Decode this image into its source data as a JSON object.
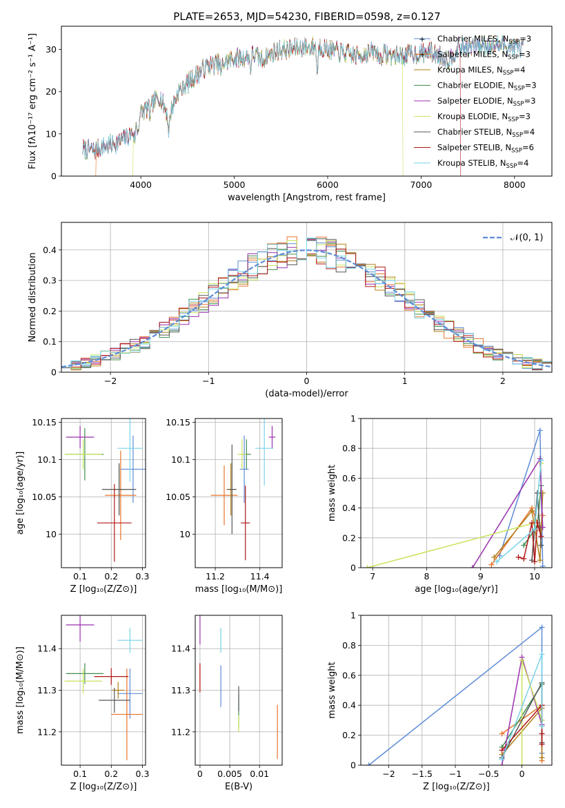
{
  "figure": {
    "title": "PLATE=2653, MJD=54230, FIBERID=0598, z=0.127"
  },
  "series": [
    {
      "name": "Chabrier MILES",
      "nssp": "3",
      "color": "#5b8bd6",
      "marker": "+"
    },
    {
      "name": "Salpeter MILES",
      "nssp": "3",
      "color": "#e8732a",
      "marker": "+"
    },
    {
      "name": "Kroupa MILES",
      "nssp": "4",
      "color": "#b07d16",
      "marker": "+"
    },
    {
      "name": "Chabrier ELODIE",
      "nssp": "3",
      "color": "#3f8c4f",
      "marker": "+"
    },
    {
      "name": "Salpeter ELODIE",
      "nssp": "3",
      "color": "#9b2fae",
      "marker": "+"
    },
    {
      "name": "Kroupa ELODIE",
      "nssp": "3",
      "color": "#c7e35a",
      "marker": "+"
    },
    {
      "name": "Chabrier STELIB",
      "nssp": "4",
      "color": "#555555",
      "marker": "+"
    },
    {
      "name": "Salpeter STELIB",
      "nssp": "6",
      "color": "#b01515",
      "marker": "+"
    },
    {
      "name": "Kroupa STELIB",
      "nssp": "4",
      "color": "#77d3e8",
      "marker": "+"
    }
  ],
  "chart_data": [
    {
      "id": "spectrum",
      "type": "line",
      "xlabel": "wavelength [Angstrom, rest frame]",
      "ylabel": "Flux [fλ10⁻¹⁷ erg cm⁻² s⁻¹ A⁻¹]",
      "xlim": [
        3150,
        8400
      ],
      "ylim": [
        0,
        35.5
      ],
      "xticks": [
        4000,
        5000,
        6000,
        7000,
        8000
      ],
      "yticks": [
        0,
        10,
        20,
        30
      ],
      "grid": false,
      "legend": "top-right",
      "continuum": {
        "x": [
          3380,
          3500,
          3600,
          3700,
          3800,
          3900,
          4000,
          4100,
          4200,
          4300,
          4400,
          4500,
          4600,
          4700,
          4800,
          4900,
          5000,
          5100,
          5200,
          5300,
          5400,
          5500,
          5600,
          5700,
          5800,
          5900,
          6000,
          6100,
          6200,
          6300,
          6400,
          6500,
          6600,
          6700,
          6800,
          6900,
          7000,
          7100,
          7200,
          7300,
          7400,
          7500,
          7600,
          7700,
          7800,
          7900,
          8000,
          8100
        ],
        "y": [
          6.5,
          6,
          7,
          7.5,
          8.5,
          10,
          15,
          16.5,
          19,
          14,
          20,
          22,
          24,
          26,
          26.5,
          27,
          28,
          28,
          29,
          27.5,
          29,
          30,
          30,
          30.5,
          30.5,
          31,
          30,
          29.5,
          29,
          28.5,
          29,
          29.5,
          29,
          28.5,
          28.5,
          29,
          29,
          29.5,
          28.5,
          27.5,
          30.5,
          30.5,
          31,
          31,
          31,
          31,
          30.5,
          30.5
        ]
      },
      "drops": [
        {
          "series": 1,
          "edge": "left",
          "x": 3520
        },
        {
          "series": 5,
          "edge": "left",
          "x": 3920
        },
        {
          "series": 5,
          "edge": "right",
          "x": 6800
        },
        {
          "series": 7,
          "edge": "right",
          "x": 7420
        }
      ]
    },
    {
      "id": "residuals",
      "type": "area",
      "xlabel": "(data-model)/error",
      "ylabel": "Normed distribution",
      "xlim": [
        -2.5,
        2.5
      ],
      "ylim": [
        0,
        0.49
      ],
      "xticks": [
        -2,
        -1,
        0,
        1,
        2
      ],
      "yticks": [
        0.0,
        0.1,
        0.2,
        0.3,
        0.4
      ],
      "grid": true,
      "legend": "top-right",
      "reference_label": "𝒩(0, 1)",
      "reference_color": "#5b8bd6",
      "bin_width": 0.1
    },
    {
      "id": "age-vs-Z",
      "type": "scatter",
      "xlabel": "Z [log₁₀(Z/Z⊙)]",
      "ylabel": "age  [log₁₀(age/yr)]",
      "xlim": [
        0.04,
        0.31
      ],
      "ylim": [
        9.955,
        10.155
      ],
      "xticks": [
        0.1,
        0.2,
        0.3
      ],
      "yticks": [
        10.0,
        10.05,
        10.1,
        10.15
      ],
      "grid": true,
      "points": [
        {
          "series": 0,
          "x": 0.27,
          "y": 10.087,
          "xerr": 0.04,
          "yerr": 0.045
        },
        {
          "series": 1,
          "x": 0.23,
          "y": 10.052,
          "xerr": 0.05,
          "yerr": 0.06
        },
        {
          "series": 2,
          "x": 0.225,
          "y": 10.06,
          "xerr": 0.025,
          "yerr": 0.03
        },
        {
          "series": 3,
          "x": 0.115,
          "y": 10.107,
          "xerr": 0.06,
          "yerr": 0.035
        },
        {
          "series": 4,
          "x": 0.1,
          "y": 10.13,
          "xerr": 0.045,
          "yerr": 0.015
        },
        {
          "series": 5,
          "x": 0.11,
          "y": 10.107,
          "xerr": 0.06,
          "yerr": 0.02
        },
        {
          "series": 6,
          "x": 0.225,
          "y": 10.06,
          "xerr": 0.055,
          "yerr": 0.035
        },
        {
          "series": 7,
          "x": 0.21,
          "y": 10.015,
          "xerr": 0.055,
          "yerr": 0.052
        },
        {
          "series": 8,
          "x": 0.26,
          "y": 10.115,
          "xerr": 0.04,
          "yerr": 0.045
        }
      ]
    },
    {
      "id": "age-vs-mass",
      "type": "scatter",
      "xlabel": "mass [log₁₀(M/M⊙)]",
      "ylabel": "",
      "xlim": [
        11.11,
        11.5
      ],
      "ylim": [
        9.955,
        10.155
      ],
      "xticks": [
        11.2,
        11.4
      ],
      "yticks": [
        10.0,
        10.05,
        10.1,
        10.15
      ],
      "grid": true,
      "points": [
        {
          "series": 0,
          "x": 11.33,
          "y": 10.087,
          "xerr": 0.02,
          "yerr": 0.045
        },
        {
          "series": 1,
          "x": 11.24,
          "y": 10.052,
          "xerr": 0.06,
          "yerr": 0.04
        },
        {
          "series": 2,
          "x": 11.27,
          "y": 10.06,
          "xerr": 0.02,
          "yerr": 0.035
        },
        {
          "series": 3,
          "x": 11.34,
          "y": 10.107,
          "xerr": 0.02,
          "yerr": 0.02
        },
        {
          "series": 4,
          "x": 11.455,
          "y": 10.13,
          "xerr": 0.015,
          "yerr": 0.015
        },
        {
          "series": 5,
          "x": 11.32,
          "y": 10.107,
          "xerr": 0.02,
          "yerr": 0.02
        },
        {
          "series": 6,
          "x": 11.275,
          "y": 10.06,
          "xerr": 0.02,
          "yerr": 0.06
        },
        {
          "series": 7,
          "x": 11.335,
          "y": 10.015,
          "xerr": 0.02,
          "yerr": 0.05
        },
        {
          "series": 8,
          "x": 11.42,
          "y": 10.115,
          "xerr": 0.04,
          "yerr": 0.05
        }
      ]
    },
    {
      "id": "weight-vs-age",
      "type": "line",
      "xlabel": "age  [log₁₀(age/yr)]",
      "ylabel": "mass weight",
      "xlim": [
        6.78,
        10.32
      ],
      "ylim": [
        0,
        1.0
      ],
      "xticks": [
        7,
        8,
        9,
        10
      ],
      "yticks": [
        0.0,
        0.2,
        0.4,
        0.6,
        0.8,
        1.0
      ],
      "grid": true,
      "lines": [
        {
          "series": 0,
          "x": [
            9.35,
            10.1,
            10.15
          ],
          "y": [
            0.08,
            0.92,
            0.01
          ]
        },
        {
          "series": 1,
          "x": [
            9.2,
            9.95,
            10.1,
            10.15
          ],
          "y": [
            0.02,
            0.4,
            0.25,
            0.35
          ]
        },
        {
          "series": 2,
          "x": [
            9.25,
            9.95,
            10.1,
            10.15
          ],
          "y": [
            0.07,
            0.38,
            0.05,
            0.5
          ]
        },
        {
          "series": 3,
          "x": [
            9.8,
            10.05,
            10.12
          ],
          "y": [
            0.15,
            0.28,
            0.55
          ]
        },
        {
          "series": 4,
          "x": [
            8.85,
            10.1,
            10.15
          ],
          "y": [
            0.0,
            0.73,
            0.27
          ]
        },
        {
          "series": 5,
          "x": [
            6.9,
            10.0,
            10.12
          ],
          "y": [
            0.0,
            0.3,
            0.7
          ]
        },
        {
          "series": 6,
          "x": [
            9.95,
            10.05,
            10.12
          ],
          "y": [
            0.05,
            0.5,
            0.15
          ]
        },
        {
          "series": 7,
          "x": [
            9.7,
            9.8,
            9.95,
            10.0,
            10.05,
            10.12
          ],
          "y": [
            0.07,
            0.06,
            0.3,
            0.04,
            0.3,
            0.21
          ]
        },
        {
          "series": 8,
          "x": [
            9.3,
            10.0,
            10.12
          ],
          "y": [
            0.04,
            0.26,
            0.72
          ]
        }
      ]
    },
    {
      "id": "mass-vs-Z",
      "type": "scatter",
      "xlabel": "Z [log₁₀(Z/Z⊙)]",
      "ylabel": "mass [log₁₀(M/M⊙)]",
      "xlim": [
        0.04,
        0.31
      ],
      "ylim": [
        11.12,
        11.48
      ],
      "xticks": [
        0.1,
        0.2,
        0.3
      ],
      "yticks": [
        11.2,
        11.3,
        11.4
      ],
      "grid": true,
      "points": [
        {
          "series": 0,
          "x": 0.26,
          "y": 11.292,
          "xerr": 0.04,
          "yerr": 0.06
        },
        {
          "series": 1,
          "x": 0.25,
          "y": 11.242,
          "xerr": 0.05,
          "yerr": 0.11
        },
        {
          "series": 2,
          "x": 0.222,
          "y": 11.3,
          "xerr": 0.02,
          "yerr": 0.02
        },
        {
          "series": 3,
          "x": 0.115,
          "y": 11.34,
          "xerr": 0.06,
          "yerr": 0.025
        },
        {
          "series": 4,
          "x": 0.1,
          "y": 11.457,
          "xerr": 0.045,
          "yerr": 0.04
        },
        {
          "series": 5,
          "x": 0.11,
          "y": 11.322,
          "xerr": 0.06,
          "yerr": 0.03
        },
        {
          "series": 6,
          "x": 0.21,
          "y": 11.276,
          "xerr": 0.05,
          "yerr": 0.03
        },
        {
          "series": 7,
          "x": 0.2,
          "y": 11.333,
          "xerr": 0.055,
          "yerr": 0.02
        },
        {
          "series": 8,
          "x": 0.26,
          "y": 11.42,
          "xerr": 0.04,
          "yerr": 0.03
        }
      ]
    },
    {
      "id": "mass-vs-EBV",
      "type": "scatter",
      "xlabel": "E(B-V)",
      "ylabel": "",
      "xlim": [
        -0.0008,
        0.0138
      ],
      "ylim": [
        11.12,
        11.48
      ],
      "xticks": [
        0.0,
        0.005,
        0.01
      ],
      "yticks": [
        11.2,
        11.3,
        11.4
      ],
      "grid": true,
      "points": [
        {
          "series": 0,
          "x": 0.0035,
          "y": 11.31,
          "xerr": 0,
          "yerr": 0.05
        },
        {
          "series": 1,
          "x": 0.013,
          "y": 11.2,
          "xerr": 0,
          "yerr": 0.065
        },
        {
          "series": 2,
          "x": 0.0,
          "y": 11.33,
          "xerr": 0,
          "yerr": 0.03
        },
        {
          "series": 3,
          "x": 0.0065,
          "y": 11.25,
          "xerr": 0,
          "yerr": 0.04
        },
        {
          "series": 4,
          "x": 0.0,
          "y": 11.45,
          "xerr": 0,
          "yerr": 0.04
        },
        {
          "series": 5,
          "x": 0.0065,
          "y": 11.22,
          "xerr": 0,
          "yerr": 0.02
        },
        {
          "series": 6,
          "x": 0.0065,
          "y": 11.28,
          "xerr": 0,
          "yerr": 0.03
        },
        {
          "series": 7,
          "x": 0.0,
          "y": 11.33,
          "xerr": 0,
          "yerr": 0.035
        },
        {
          "series": 8,
          "x": 0.0035,
          "y": 11.42,
          "xerr": 0,
          "yerr": 0.03
        }
      ]
    },
    {
      "id": "weight-vs-Z",
      "type": "line",
      "xlabel": "Z [log₁₀(Z/Z⊙)]",
      "ylabel": "mass weight",
      "xlim": [
        -2.42,
        0.45
      ],
      "ylim": [
        0,
        1.0
      ],
      "xticks": [
        -2.0,
        -1.5,
        -1.0,
        -0.5,
        0.0
      ],
      "yticks": [
        0.0,
        0.2,
        0.4,
        0.6,
        0.8,
        1.0
      ],
      "grid": true,
      "lines": [
        {
          "series": 0,
          "x": [
            -2.3,
            0.3,
            0.3
          ],
          "y": [
            0.0,
            0.92,
            0.08
          ]
        },
        {
          "series": 1,
          "x": [
            -0.3,
            0.3,
            0.3
          ],
          "y": [
            0.21,
            0.4,
            0.03
          ]
        },
        {
          "series": 2,
          "x": [
            -0.3,
            0.3,
            0.3
          ],
          "y": [
            0.07,
            0.38,
            0.05
          ]
        },
        {
          "series": 3,
          "x": [
            -0.3,
            0.3,
            0.3
          ],
          "y": [
            0.12,
            0.54,
            0.3
          ]
        },
        {
          "series": 4,
          "x": [
            -0.3,
            0.0,
            0.3
          ],
          "y": [
            0.0,
            0.72,
            0.27
          ]
        },
        {
          "series": 5,
          "x": [
            0.0,
            0.0,
            0.3
          ],
          "y": [
            0.0,
            0.7,
            0.3
          ]
        },
        {
          "series": 6,
          "x": [
            -0.3,
            0.3,
            0.3
          ],
          "y": [
            0.05,
            0.55,
            0.15
          ]
        },
        {
          "series": 7,
          "x": [
            -0.3,
            0.3,
            0.3,
            0.3
          ],
          "y": [
            0.1,
            0.4,
            0.21,
            0.14
          ]
        },
        {
          "series": 8,
          "x": [
            -0.3,
            0.3,
            0.3
          ],
          "y": [
            0.04,
            0.74,
            0.26
          ]
        }
      ]
    }
  ]
}
